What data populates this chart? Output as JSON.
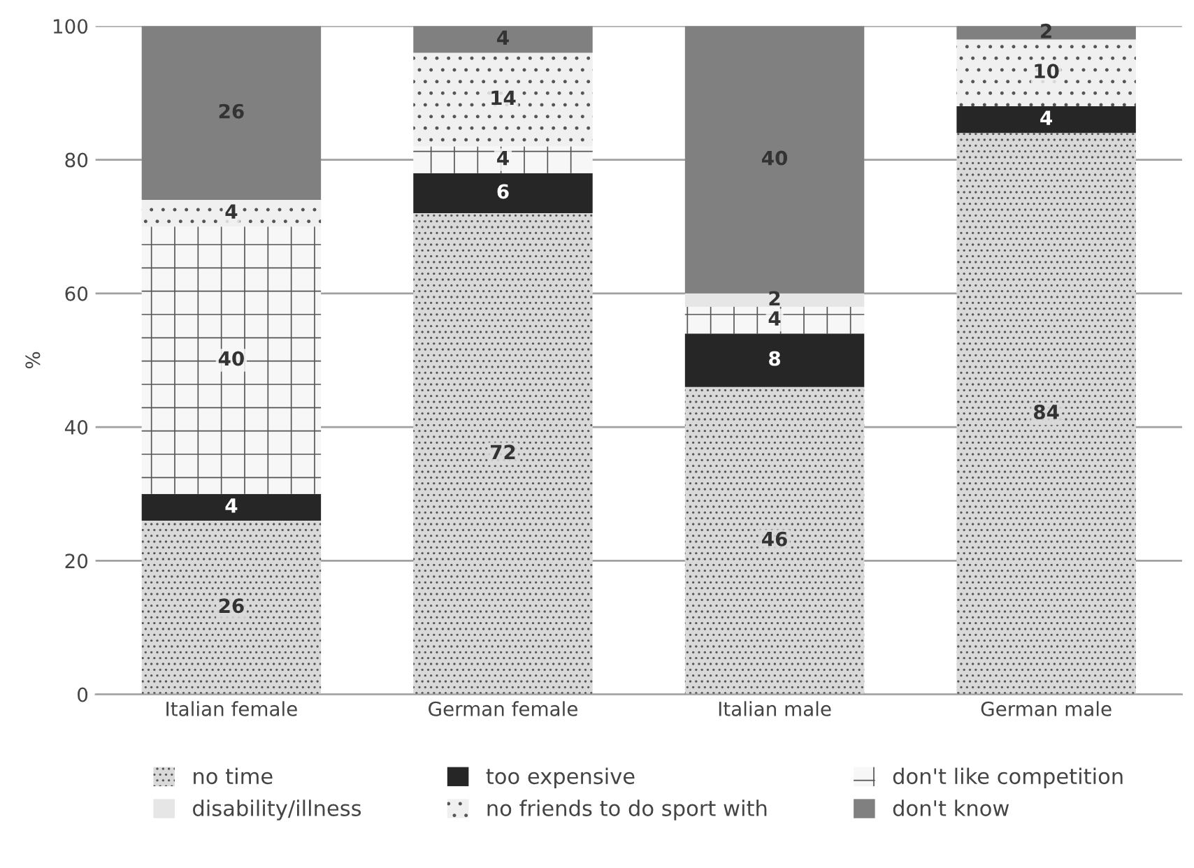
{
  "chart_data": {
    "type": "bar",
    "stacked": true,
    "ylabel": "%",
    "categories": [
      "Italian female",
      "German female",
      "Italian male",
      "German male"
    ],
    "series": [
      {
        "name": "no time",
        "color": "#d9d9d9",
        "values": [
          26,
          72,
          46,
          84
        ],
        "value_labels": [
          "26",
          "72",
          "46",
          "84"
        ]
      },
      {
        "name": "too expensive",
        "color": "#262626",
        "values": [
          4,
          6,
          8,
          4
        ],
        "value_labels": [
          "4",
          "6",
          "8",
          "4"
        ]
      },
      {
        "name": "don't like competition",
        "color": "#f7f7f7",
        "values": [
          40,
          4,
          4,
          0
        ],
        "value_labels": [
          "40",
          "4",
          "4",
          null
        ]
      },
      {
        "name": "disability/illness",
        "color": "#e6e6e6",
        "values": [
          0,
          0,
          2,
          0
        ],
        "value_labels": [
          null,
          null,
          "2",
          null
        ]
      },
      {
        "name": "no friends to do sport with",
        "color": "#f0f0f0",
        "values": [
          4,
          14,
          0,
          10
        ],
        "value_labels": [
          "4",
          "14",
          null,
          "10"
        ]
      },
      {
        "name": "don't know",
        "color": "#808080",
        "values": [
          26,
          4,
          40,
          2
        ],
        "value_labels": [
          "26",
          "4",
          "40",
          "2"
        ]
      }
    ],
    "ylim": [
      0,
      100
    ],
    "yticks": [
      0,
      20,
      40,
      60,
      80,
      100
    ],
    "grid": "y",
    "legend": "bottom"
  }
}
